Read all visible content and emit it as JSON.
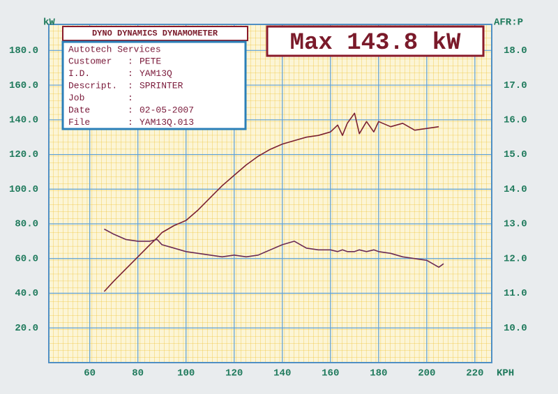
{
  "panel": {
    "heading": "DYNO DYNAMICS DYNAMOMETER",
    "max_label": "Max 143.8 kW",
    "company": "Autotech Services",
    "fields": [
      {
        "label": "Customer",
        "sep": ":",
        "value": "PETE"
      },
      {
        "label": "I.D.",
        "sep": ":",
        "value": "YAM13Q"
      },
      {
        "label": "Descript.",
        "sep": ":",
        "value": "SPRINTER"
      },
      {
        "label": "Job",
        "sep": ":"
      },
      {
        "label": "Date",
        "sep": ":",
        "value": "02-05-2007"
      },
      {
        "label": "File",
        "sep": ":",
        "value": "YAM13Q.013"
      }
    ]
  },
  "chart_data": {
    "type": "line",
    "y_label": "kW",
    "y2_label": "AFR:P",
    "x_label": "KPH",
    "x": [
      66,
      70,
      75,
      80,
      85,
      88,
      90,
      95,
      100,
      105,
      110,
      115,
      120,
      125,
      130,
      135,
      140,
      145,
      150,
      155,
      160,
      163,
      165,
      167,
      170,
      172,
      175,
      178,
      180,
      185,
      190,
      195,
      200,
      205,
      207
    ],
    "series": [
      {
        "color": "#7a2032",
        "values": [
          41,
          47,
          54,
          61,
          68,
          72,
          75,
          79,
          82,
          88,
          95,
          102,
          108,
          114,
          119,
          123,
          126,
          128,
          130,
          131,
          133,
          137,
          131,
          138,
          143.8,
          132,
          139,
          133,
          139,
          136,
          138,
          134,
          135,
          136,
          null
        ]
      },
      {
        "color": "#6a2a55",
        "axis": "y2",
        "values": [
          12.85,
          12.7,
          12.55,
          12.5,
          12.5,
          12.55,
          12.4,
          12.3,
          12.2,
          12.15,
          12.1,
          12.05,
          12.1,
          12.05,
          12.1,
          12.25,
          12.4,
          12.5,
          12.3,
          12.25,
          12.25,
          12.2,
          12.25,
          12.2,
          12.2,
          12.25,
          12.2,
          12.25,
          12.2,
          12.15,
          12.05,
          12.0,
          11.95,
          11.75,
          11.85
        ]
      }
    ],
    "xlim": [
      43,
      227
    ],
    "xticks": [
      60,
      80,
      100,
      120,
      140,
      160,
      180,
      200,
      220
    ],
    "ylim": [
      0,
      195
    ],
    "yticks": [
      {
        "value": 20,
        "label": "20.0"
      },
      {
        "value": 40,
        "label": "40.0"
      },
      {
        "value": 60,
        "label": "60.0"
      },
      {
        "value": 80,
        "label": "80.0"
      },
      {
        "value": 100,
        "label": "100.0"
      },
      {
        "value": 120,
        "label": "120.0"
      },
      {
        "value": 140,
        "label": "140.0"
      },
      {
        "value": 160,
        "label": "160.0"
      },
      {
        "value": 180,
        "label": "180.0"
      }
    ],
    "y2lim": [
      9,
      18.75
    ],
    "y2ticks": [
      {
        "value": 10,
        "label": "10.0"
      },
      {
        "value": 11,
        "label": "11.0"
      },
      {
        "value": 12,
        "label": "12.0"
      },
      {
        "value": 13,
        "label": "13.0"
      },
      {
        "value": 14,
        "label": "14.0"
      },
      {
        "value": 15,
        "label": "15.0"
      },
      {
        "value": 16,
        "label": "16.0"
      },
      {
        "value": 17,
        "label": "17.0"
      },
      {
        "value": 18,
        "label": "18.0"
      }
    ],
    "grid": true
  }
}
